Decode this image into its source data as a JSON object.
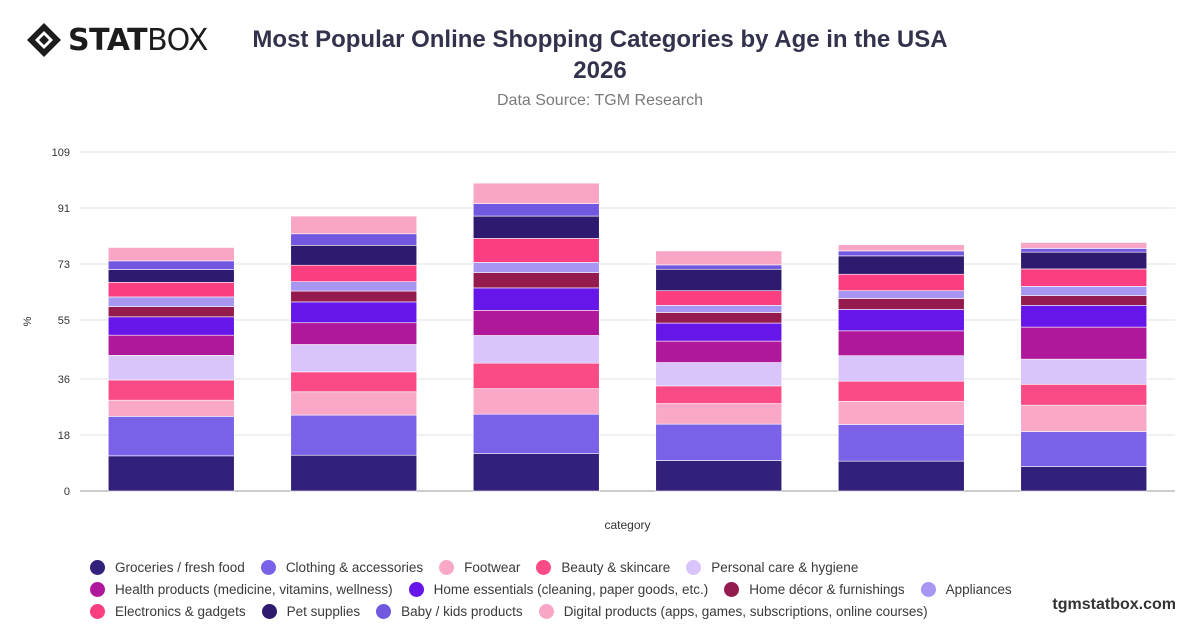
{
  "brand": {
    "logo_text_bold": "STAT",
    "logo_text_light": "BOX",
    "watermark": "tgmstatbox.com"
  },
  "chart_data": {
    "type": "bar",
    "stacked": true,
    "title": "Most Popular Online Shopping Categories by Age in the USA 2026",
    "subtitle": "Data Source: TGM Research",
    "xlabel": "category",
    "ylabel": "%",
    "ylim": [
      0,
      109
    ],
    "yticks": [
      0,
      18,
      36,
      55,
      73,
      91,
      109
    ],
    "grid": true,
    "legend_position": "bottom",
    "categories": [
      "",
      "",
      "",
      "",
      "",
      ""
    ],
    "series": [
      {
        "name": "Groceries / fresh food",
        "color": "#33207a",
        "values": [
          11.3,
          11.5,
          12.0,
          9.8,
          9.6,
          7.9
        ]
      },
      {
        "name": "Clothing & accessories",
        "color": "#7b61e8",
        "values": [
          12.7,
          12.9,
          12.7,
          11.7,
          11.8,
          11.2
        ]
      },
      {
        "name": "Footwear",
        "color": "#f9a8c8",
        "values": [
          5.2,
          7.5,
          8.2,
          6.6,
          7.4,
          8.5
        ]
      },
      {
        "name": "Beauty & skincare",
        "color": "#fb4b86",
        "values": [
          6.5,
          6.4,
          8.2,
          5.7,
          6.5,
          6.7
        ]
      },
      {
        "name": "Personal care & hygiene",
        "color": "#d9c4fb",
        "values": [
          7.9,
          8.8,
          8.9,
          7.5,
          8.2,
          8.1
        ]
      },
      {
        "name": "Health products (medicine, vitamins, wellness)",
        "color": "#b0189c",
        "values": [
          6.5,
          7.0,
          8.1,
          6.9,
          8.0,
          10.3
        ]
      },
      {
        "name": "Home essentials (cleaning, paper goods, etc.)",
        "color": "#6616e8",
        "values": [
          5.9,
          6.7,
          7.2,
          5.8,
          6.9,
          7.0
        ]
      },
      {
        "name": "Home décor & furnishings",
        "color": "#951a4e",
        "values": [
          3.3,
          3.5,
          4.9,
          3.4,
          3.5,
          3.1
        ]
      },
      {
        "name": "Appliances",
        "color": "#a896f3",
        "values": [
          3.1,
          3.0,
          3.3,
          2.3,
          2.5,
          3.0
        ]
      },
      {
        "name": "Electronics & gadgets",
        "color": "#fb3d82",
        "values": [
          4.7,
          5.3,
          7.7,
          4.7,
          5.3,
          5.6
        ]
      },
      {
        "name": "Pet supplies",
        "color": "#2e1a6e",
        "values": [
          4.1,
          6.4,
          7.2,
          6.9,
          5.9,
          5.4
        ]
      },
      {
        "name": "Baby / kids products",
        "color": "#7258e0",
        "values": [
          2.8,
          3.7,
          4.0,
          1.4,
          1.6,
          1.2
        ]
      },
      {
        "name": "Digital products (apps, games, subscriptions, online courses)",
        "color": "#f9a6c6",
        "values": [
          4.3,
          5.7,
          6.6,
          4.5,
          2.0,
          1.9
        ]
      }
    ]
  }
}
